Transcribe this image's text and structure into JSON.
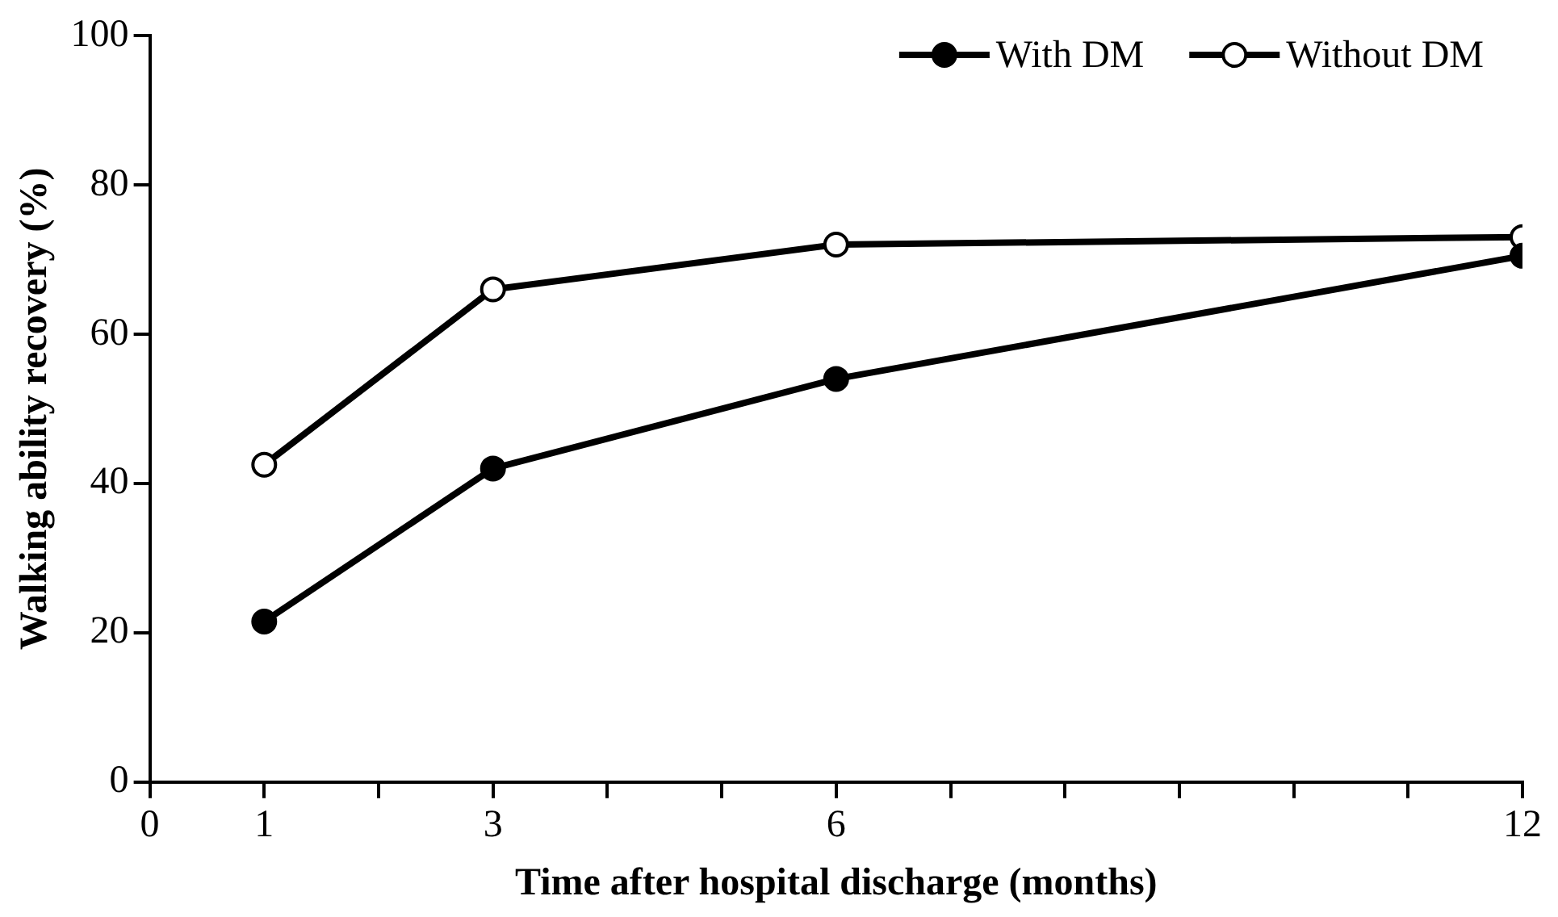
{
  "chart_data": {
    "type": "line",
    "xlabel": "Time after hospital discharge (months)",
    "ylabel": "Walking ability recovery (%)",
    "x": [
      1,
      3,
      6,
      12
    ],
    "series": [
      {
        "name": "With DM",
        "color": "#000000",
        "values": [
          21.5,
          42,
          54,
          70.5
        ]
      },
      {
        "name": "Without DM",
        "color": "#000000",
        "values": [
          42.5,
          66,
          72,
          73
        ]
      }
    ],
    "xlim": [
      0,
      12
    ],
    "xticks": [
      0,
      1,
      {
        "value": 2,
        "label": null
      },
      3,
      {
        "value": 4,
        "label": null
      },
      {
        "value": 5,
        "label": null
      },
      6,
      {
        "value": 7,
        "label": null
      },
      {
        "value": 8,
        "label": null
      },
      {
        "value": 9,
        "label": null
      },
      {
        "value": 10,
        "label": null
      },
      {
        "value": 11,
        "label": null
      },
      12
    ],
    "ylim": [
      0,
      100
    ],
    "yticks": [
      0,
      20,
      40,
      60,
      80,
      100
    ],
    "grid": false,
    "legend": "top right",
    "marker": "circle",
    "line_style": "solid"
  }
}
